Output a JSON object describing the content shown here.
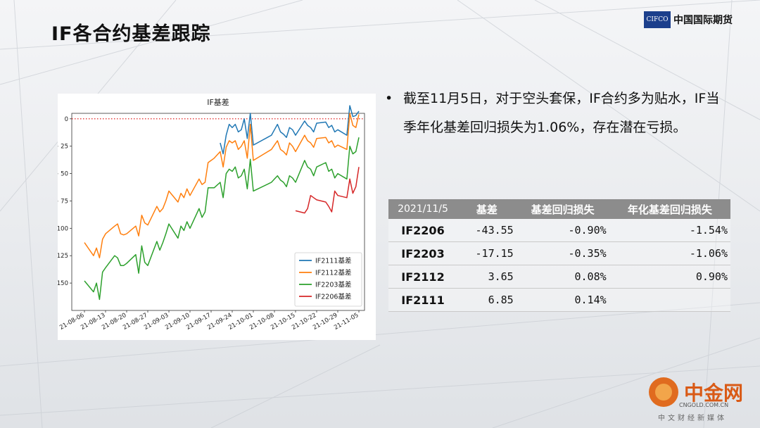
{
  "slide": {
    "title": "IF各合约基差跟踪",
    "logo_mark": "CIFCO",
    "logo_name": "中国国际期货"
  },
  "bullet": {
    "text": "截至11月5日，对于空头套保，IF合约多为贴水，IF当季年化基差回归损失为1.06%，存在潜在亏损。"
  },
  "table": {
    "headers": [
      "2021/11/5",
      "基差",
      "基差回归损失",
      "年化基差回归损失"
    ],
    "rows": [
      [
        "IF2206",
        "-43.55",
        "-0.90%",
        "-1.54%"
      ],
      [
        "IF2203",
        "-17.15",
        "-0.35%",
        "-1.06%"
      ],
      [
        "IF2112",
        "3.65",
        "0.08%",
        "0.90%"
      ],
      [
        "IF2111",
        "6.85",
        "0.14%",
        ""
      ]
    ]
  },
  "watermark": {
    "cn": "中金网",
    "en": "CNGOLD.COM.CN",
    "sub": "中文财经新媒体"
  },
  "chart_data": {
    "type": "line",
    "title": "IF基差",
    "xlabel": "",
    "ylabel": "",
    "ylim": [
      -175,
      5
    ],
    "yticks": [
      0,
      -25,
      -50,
      -75,
      -100,
      -125,
      -150
    ],
    "ytick_labels": [
      "0",
      "− 25",
      "− 50",
      "− 75",
      "−100",
      "−125",
      "−150"
    ],
    "xticks": [
      "21-08-06",
      "21-08-13",
      "21-08-20",
      "21-08-27",
      "21-09-03",
      "21-09-10",
      "21-09-17",
      "21-09-24",
      "21-10-01",
      "21-10-08",
      "21-10-15",
      "21-10-22",
      "21-10-29",
      "21-11-05"
    ],
    "x_range": [
      "2021-08-06",
      "2021-11-05"
    ],
    "reference_line": {
      "y": 0,
      "color": "#e02020",
      "style": "dotted"
    },
    "legend_position": "bottom-right",
    "grid": false,
    "series": [
      {
        "name": "IF2111基差",
        "color": "#1f77b4",
        "points": [
          [
            "2021-09-20",
            -22
          ],
          [
            "2021-09-21",
            -32
          ],
          [
            "2021-09-22",
            -15
          ],
          [
            "2021-09-23",
            -5
          ],
          [
            "2021-09-24",
            -8
          ],
          [
            "2021-09-25",
            -5
          ],
          [
            "2021-09-26",
            -12
          ],
          [
            "2021-09-27",
            -10
          ],
          [
            "2021-09-28",
            0
          ],
          [
            "2021-09-29",
            -18
          ],
          [
            "2021-09-30",
            5
          ],
          [
            "2021-10-01",
            -24
          ],
          [
            "2021-10-07",
            -15
          ],
          [
            "2021-10-08",
            -10
          ],
          [
            "2021-10-09",
            -5
          ],
          [
            "2021-10-10",
            -12
          ],
          [
            "2021-10-11",
            -14
          ],
          [
            "2021-10-12",
            -17
          ],
          [
            "2021-10-13",
            -8
          ],
          [
            "2021-10-14",
            -10
          ],
          [
            "2021-10-15",
            -15
          ],
          [
            "2021-10-18",
            -2
          ],
          [
            "2021-10-19",
            -6
          ],
          [
            "2021-10-20",
            -8
          ],
          [
            "2021-10-21",
            -12
          ],
          [
            "2021-10-22",
            -4
          ],
          [
            "2021-10-25",
            -3
          ],
          [
            "2021-10-26",
            -8
          ],
          [
            "2021-10-27",
            -6
          ],
          [
            "2021-10-28",
            -12
          ],
          [
            "2021-10-29",
            -10
          ],
          [
            "2021-11-01",
            -15
          ],
          [
            "2021-11-02",
            12
          ],
          [
            "2021-11-03",
            2
          ],
          [
            "2021-11-04",
            3
          ],
          [
            "2021-11-05",
            7
          ]
        ]
      },
      {
        "name": "IF2112基差",
        "color": "#ff7f0e",
        "points": [
          [
            "2021-08-06",
            -113
          ],
          [
            "2021-08-09",
            -125
          ],
          [
            "2021-08-10",
            -118
          ],
          [
            "2021-08-11",
            -127
          ],
          [
            "2021-08-12",
            -110
          ],
          [
            "2021-08-13",
            -105
          ],
          [
            "2021-08-16",
            -98
          ],
          [
            "2021-08-17",
            -96
          ],
          [
            "2021-08-18",
            -105
          ],
          [
            "2021-08-19",
            -106
          ],
          [
            "2021-08-20",
            -105
          ],
          [
            "2021-08-23",
            -98
          ],
          [
            "2021-08-24",
            -107
          ],
          [
            "2021-08-25",
            -88
          ],
          [
            "2021-08-26",
            -95
          ],
          [
            "2021-08-27",
            -97
          ],
          [
            "2021-08-30",
            -80
          ],
          [
            "2021-08-31",
            -85
          ],
          [
            "2021-09-01",
            -82
          ],
          [
            "2021-09-02",
            -75
          ],
          [
            "2021-09-03",
            -66
          ],
          [
            "2021-09-06",
            -76
          ],
          [
            "2021-09-07",
            -68
          ],
          [
            "2021-09-08",
            -72
          ],
          [
            "2021-09-09",
            -64
          ],
          [
            "2021-09-10",
            -70
          ],
          [
            "2021-09-13",
            -55
          ],
          [
            "2021-09-14",
            -60
          ],
          [
            "2021-09-15",
            -58
          ],
          [
            "2021-09-16",
            -40
          ],
          [
            "2021-09-17",
            -38
          ],
          [
            "2021-09-18",
            -36
          ],
          [
            "2021-09-20",
            -30
          ],
          [
            "2021-09-21",
            -44
          ],
          [
            "2021-09-22",
            -26
          ],
          [
            "2021-09-23",
            -20
          ],
          [
            "2021-09-24",
            -22
          ],
          [
            "2021-09-25",
            -20
          ],
          [
            "2021-09-26",
            -28
          ],
          [
            "2021-09-27",
            -25
          ],
          [
            "2021-09-28",
            -20
          ],
          [
            "2021-09-29",
            -36
          ],
          [
            "2021-09-30",
            -5
          ],
          [
            "2021-10-01",
            -38
          ],
          [
            "2021-10-07",
            -28
          ],
          [
            "2021-10-08",
            -24
          ],
          [
            "2021-10-09",
            -20
          ],
          [
            "2021-10-10",
            -28
          ],
          [
            "2021-10-11",
            -30
          ],
          [
            "2021-10-12",
            -33
          ],
          [
            "2021-10-13",
            -22
          ],
          [
            "2021-10-14",
            -25
          ],
          [
            "2021-10-15",
            -30
          ],
          [
            "2021-10-18",
            -15
          ],
          [
            "2021-10-19",
            -20
          ],
          [
            "2021-10-20",
            -22
          ],
          [
            "2021-10-21",
            -26
          ],
          [
            "2021-10-22",
            -18
          ],
          [
            "2021-10-25",
            -17
          ],
          [
            "2021-10-26",
            -22
          ],
          [
            "2021-10-27",
            -20
          ],
          [
            "2021-10-28",
            -26
          ],
          [
            "2021-10-29",
            -24
          ],
          [
            "2021-11-01",
            -28
          ],
          [
            "2021-11-02",
            5
          ],
          [
            "2021-11-03",
            -6
          ],
          [
            "2021-11-04",
            -8
          ],
          [
            "2021-11-05",
            4
          ]
        ]
      },
      {
        "name": "IF2203基差",
        "color": "#2ca02c",
        "points": [
          [
            "2021-08-06",
            -148
          ],
          [
            "2021-08-09",
            -158
          ],
          [
            "2021-08-10",
            -150
          ],
          [
            "2021-08-11",
            -165
          ],
          [
            "2021-08-12",
            -140
          ],
          [
            "2021-08-13",
            -136
          ],
          [
            "2021-08-16",
            -125
          ],
          [
            "2021-08-17",
            -127
          ],
          [
            "2021-08-18",
            -134
          ],
          [
            "2021-08-19",
            -134
          ],
          [
            "2021-08-20",
            -132
          ],
          [
            "2021-08-23",
            -124
          ],
          [
            "2021-08-24",
            -141
          ],
          [
            "2021-08-25",
            -116
          ],
          [
            "2021-08-26",
            -131
          ],
          [
            "2021-08-27",
            -134
          ],
          [
            "2021-08-30",
            -112
          ],
          [
            "2021-08-31",
            -120
          ],
          [
            "2021-09-01",
            -113
          ],
          [
            "2021-09-02",
            -105
          ],
          [
            "2021-09-03",
            -96
          ],
          [
            "2021-09-06",
            -109
          ],
          [
            "2021-09-07",
            -98
          ],
          [
            "2021-09-08",
            -102
          ],
          [
            "2021-09-09",
            -94
          ],
          [
            "2021-09-10",
            -100
          ],
          [
            "2021-09-13",
            -82
          ],
          [
            "2021-09-14",
            -90
          ],
          [
            "2021-09-15",
            -85
          ],
          [
            "2021-09-16",
            -63
          ],
          [
            "2021-09-17",
            -63
          ],
          [
            "2021-09-18",
            -63
          ],
          [
            "2021-09-20",
            -58
          ],
          [
            "2021-09-21",
            -72
          ],
          [
            "2021-09-22",
            -50
          ],
          [
            "2021-09-23",
            -46
          ],
          [
            "2021-09-24",
            -48
          ],
          [
            "2021-09-25",
            -44
          ],
          [
            "2021-09-26",
            -54
          ],
          [
            "2021-09-27",
            -52
          ],
          [
            "2021-09-28",
            -46
          ],
          [
            "2021-09-29",
            -64
          ],
          [
            "2021-09-30",
            -37
          ],
          [
            "2021-10-01",
            -66
          ],
          [
            "2021-10-07",
            -58
          ],
          [
            "2021-10-08",
            -55
          ],
          [
            "2021-10-09",
            -52
          ],
          [
            "2021-10-10",
            -56
          ],
          [
            "2021-10-11",
            -58
          ],
          [
            "2021-10-12",
            -62
          ],
          [
            "2021-10-13",
            -52
          ],
          [
            "2021-10-14",
            -54
          ],
          [
            "2021-10-15",
            -58
          ],
          [
            "2021-10-18",
            -38
          ],
          [
            "2021-10-19",
            -44
          ],
          [
            "2021-10-20",
            -46
          ],
          [
            "2021-10-21",
            -52
          ],
          [
            "2021-10-22",
            -44
          ],
          [
            "2021-10-25",
            -40
          ],
          [
            "2021-10-26",
            -48
          ],
          [
            "2021-10-27",
            -46
          ],
          [
            "2021-10-28",
            -54
          ],
          [
            "2021-10-29",
            -50
          ],
          [
            "2021-11-01",
            -55
          ],
          [
            "2021-11-02",
            -25
          ],
          [
            "2021-11-03",
            -32
          ],
          [
            "2021-11-04",
            -30
          ],
          [
            "2021-11-05",
            -17
          ]
        ]
      },
      {
        "name": "IF2206基差",
        "color": "#d62728",
        "points": [
          [
            "2021-10-15",
            -84
          ],
          [
            "2021-10-18",
            -86
          ],
          [
            "2021-10-19",
            -82
          ],
          [
            "2021-10-20",
            -70
          ],
          [
            "2021-10-21",
            -72
          ],
          [
            "2021-10-22",
            -74
          ],
          [
            "2021-10-25",
            -76
          ],
          [
            "2021-10-26",
            -80
          ],
          [
            "2021-10-27",
            -85
          ],
          [
            "2021-10-28",
            -66
          ],
          [
            "2021-10-29",
            -70
          ],
          [
            "2021-11-01",
            -72
          ],
          [
            "2021-11-02",
            -55
          ],
          [
            "2021-11-03",
            -68
          ],
          [
            "2021-11-04",
            -62
          ],
          [
            "2021-11-05",
            -44
          ]
        ]
      }
    ]
  }
}
